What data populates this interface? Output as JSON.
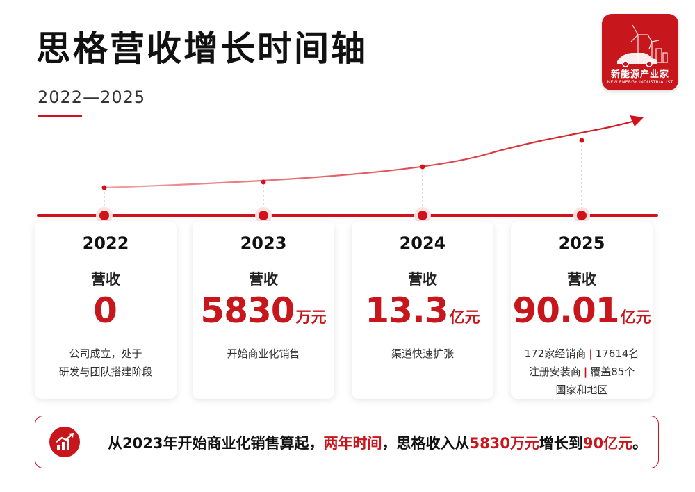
{
  "header": {
    "title": "思格营收增长时间轴",
    "subtitle": "2022—2025"
  },
  "logo": {
    "name": "新能源产业家",
    "english": "NEW ENERGY INDUSTRIALIST",
    "icon": "wind-turbine-car-icon"
  },
  "timeline": [
    {
      "year": "2022",
      "label": "营收",
      "value": "0",
      "unit": "",
      "desc_lines": [
        "公司成立，处于",
        "研发与团队搭建阶段"
      ]
    },
    {
      "year": "2023",
      "label": "营收",
      "value": "5830",
      "unit": "万元",
      "desc_lines": [
        "开始商业化销售"
      ]
    },
    {
      "year": "2024",
      "label": "营收",
      "value": "13.3",
      "unit": "亿元",
      "desc_lines": [
        "渠道快速扩张"
      ]
    },
    {
      "year": "2025",
      "label": "营收",
      "value": "90.01",
      "unit": "亿元",
      "desc_parts": [
        "172家经销商",
        "17614名",
        "注册安装商",
        "覆盖85个",
        "国家和地区"
      ]
    }
  ],
  "summary": {
    "part1": "从2023年开始商业化销售算起，",
    "part2": "两年时间",
    "part3": "，思格收入从",
    "part4": "5830万元",
    "part5": "增长到",
    "part6": "90亿元",
    "part7": "。",
    "icon": "growth-chart-icon"
  },
  "colors": {
    "accent": "#c8161d",
    "text": "#111111"
  }
}
